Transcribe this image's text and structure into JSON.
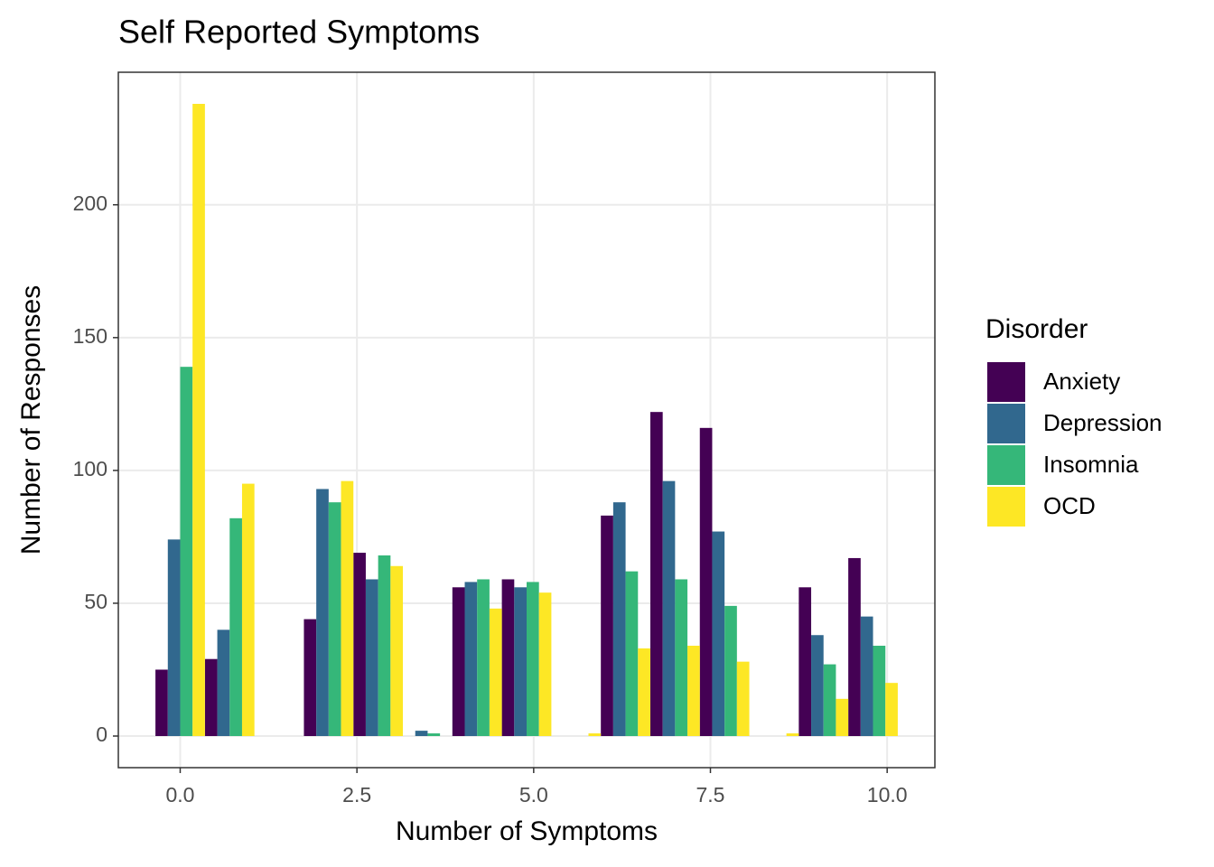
{
  "chart_data": {
    "type": "histogram",
    "title": "Self Reported Symptoms",
    "x_label": "Number of Symptoms",
    "y_label": "Number of Responses",
    "legend_title": "Disorder",
    "legend_position": "right",
    "grid": true,
    "bins": [
      -0.35,
      0.35,
      1.05,
      1.75,
      2.45,
      3.15,
      3.85,
      4.55,
      5.25,
      5.95,
      6.65,
      7.35,
      8.05,
      8.75,
      9.45,
      10.15
    ],
    "series": [
      {
        "name": "Anxiety",
        "color": "#440154",
        "values": [
          25,
          29,
          0,
          44,
          69,
          0,
          56,
          59,
          0,
          83,
          122,
          116,
          0,
          56,
          67
        ]
      },
      {
        "name": "Depression",
        "color": "#31688E",
        "values": [
          74,
          40,
          0,
          93,
          59,
          2,
          58,
          56,
          0,
          88,
          96,
          77,
          0,
          38,
          45
        ]
      },
      {
        "name": "Insomnia",
        "color": "#35B779",
        "values": [
          139,
          82,
          0,
          88,
          68,
          1,
          59,
          58,
          0,
          62,
          59,
          49,
          0,
          27,
          34
        ]
      },
      {
        "name": "OCD",
        "color": "#FDE725",
        "values": [
          238,
          95,
          0,
          96,
          64,
          0,
          48,
          54,
          1,
          33,
          34,
          28,
          1,
          14,
          20
        ]
      }
    ],
    "xlim": [
      -0.875,
      10.675
    ],
    "xticks": [
      {
        "value": 0,
        "label": "0.0"
      },
      {
        "value": 2.5,
        "label": "2.5"
      },
      {
        "value": 5,
        "label": "5.0"
      },
      {
        "value": 7.5,
        "label": "7.5"
      },
      {
        "value": 10,
        "label": "10.0"
      }
    ],
    "ylim": [
      -11.9,
      249.9
    ],
    "yticks": [
      0,
      50,
      100,
      150,
      200
    ]
  }
}
